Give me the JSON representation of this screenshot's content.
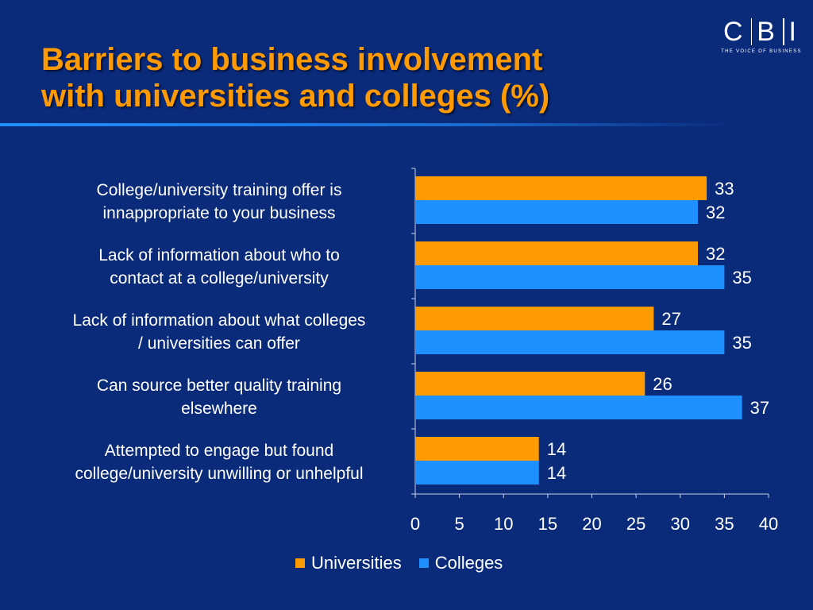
{
  "title": {
    "line1": "Barriers to business involvement",
    "line2": "with universities and colleges (%)"
  },
  "logo": {
    "letters": [
      "C",
      "B",
      "I"
    ],
    "tagline": "THE VOICE OF BUSINESS"
  },
  "colors": {
    "background": "#0a2a7a",
    "title": "#ff9a00",
    "universities": "#ff9a00",
    "colleges": "#1e90ff",
    "text": "#ffffff"
  },
  "chart_data": {
    "type": "bar",
    "orientation": "horizontal",
    "categories": [
      [
        "College/university training offer is",
        "innappropriate to your business"
      ],
      [
        "Lack of information about who to",
        "contact at a college/university"
      ],
      [
        "Lack of information about what colleges",
        "/ universities can offer"
      ],
      [
        "Can source better quality training",
        "elsewhere"
      ],
      [
        "Attempted to engage but found",
        "college/university unwilling or unhelpful"
      ]
    ],
    "series": [
      {
        "name": "Universities",
        "values": [
          33,
          32,
          27,
          26,
          14
        ]
      },
      {
        "name": "Colleges",
        "values": [
          32,
          35,
          35,
          37,
          14
        ]
      }
    ],
    "xlim": [
      0,
      40
    ],
    "xticks": [
      0,
      5,
      10,
      15,
      20,
      25,
      30,
      35,
      40
    ],
    "title": "Barriers to business involvement with universities and colleges (%)",
    "xlabel": "",
    "ylabel": "",
    "grid": false,
    "legend": "bottom"
  }
}
